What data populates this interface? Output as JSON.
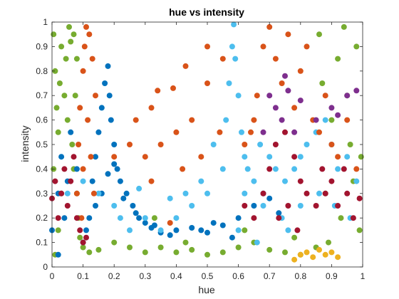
{
  "chart_data": {
    "type": "scatter",
    "title": "hue vs intensity",
    "xlabel": "hue",
    "ylabel": "intensity",
    "xlim": [
      0,
      1
    ],
    "ylim": [
      0,
      1
    ],
    "xticks": [
      "0",
      "0.1",
      "0.2",
      "0.3",
      "0.4",
      "0.5",
      "0.6",
      "0.7",
      "0.8",
      "0.9",
      "1"
    ],
    "yticks": [
      "0",
      "0.1",
      "0.2",
      "0.3",
      "0.4",
      "0.5",
      "0.6",
      "0.7",
      "0.8",
      "0.9",
      "1"
    ],
    "grid": false,
    "legend": "none",
    "series": [
      {
        "color": "#77AC30",
        "points": [
          [
            0.005,
            0.95
          ],
          [
            0.01,
            0.8
          ],
          [
            0.015,
            0.65
          ],
          [
            0.02,
            0.55
          ],
          [
            0.025,
            0.75
          ],
          [
            0.03,
            0.9
          ],
          [
            0.04,
            0.7
          ],
          [
            0.045,
            0.85
          ],
          [
            0.05,
            0.6
          ],
          [
            0.055,
            0.98
          ],
          [
            0.06,
            0.92
          ],
          [
            0.065,
            0.5
          ],
          [
            0.07,
            0.4
          ],
          [
            0.075,
            0.7
          ],
          [
            0.08,
            0.3
          ],
          [
            0.085,
            0.2
          ],
          [
            0.09,
            0.12
          ],
          [
            0.1,
            0.08
          ],
          [
            0.12,
            0.06
          ],
          [
            0.15,
            0.07
          ],
          [
            0.2,
            0.1
          ],
          [
            0.25,
            0.08
          ],
          [
            0.3,
            0.06
          ],
          [
            0.35,
            0.08
          ],
          [
            0.4,
            0.06
          ],
          [
            0.45,
            0.07
          ],
          [
            0.5,
            0.05
          ],
          [
            0.55,
            0.06
          ],
          [
            0.6,
            0.08
          ],
          [
            0.65,
            0.1
          ],
          [
            0.7,
            0.07
          ],
          [
            0.75,
            0.06
          ],
          [
            0.8,
            0.05
          ],
          [
            0.85,
            0.08
          ],
          [
            0.88,
            0.3
          ],
          [
            0.9,
            0.6
          ],
          [
            0.92,
            0.85
          ],
          [
            0.94,
            0.98
          ],
          [
            0.95,
            0.7
          ],
          [
            0.96,
            0.5
          ],
          [
            0.97,
            0.35
          ],
          [
            0.98,
            0.9
          ],
          [
            0.99,
            0.15
          ],
          [
            0.995,
            0.45
          ],
          [
            0.86,
            0.95
          ],
          [
            0.87,
            0.75
          ],
          [
            0.89,
            0.1
          ],
          [
            0.93,
            0.2
          ],
          [
            0.03,
            0.3
          ],
          [
            0.02,
            0.15
          ],
          [
            0.01,
            0.05
          ],
          [
            0.005,
            0.4
          ],
          [
            0.07,
            0.95
          ],
          [
            0.08,
            0.85
          ],
          [
            0.33,
            0.2
          ],
          [
            0.43,
            0.1
          ],
          [
            0.62,
            0.15
          ],
          [
            0.78,
            0.12
          ]
        ]
      },
      {
        "color": "#0072BD",
        "points": [
          [
            0.1,
            0.1
          ],
          [
            0.12,
            0.2
          ],
          [
            0.13,
            0.35
          ],
          [
            0.14,
            0.45
          ],
          [
            0.15,
            0.55
          ],
          [
            0.16,
            0.65
          ],
          [
            0.17,
            0.75
          ],
          [
            0.18,
            0.82
          ],
          [
            0.185,
            0.7
          ],
          [
            0.19,
            0.6
          ],
          [
            0.2,
            0.5
          ],
          [
            0.21,
            0.4
          ],
          [
            0.22,
            0.35
          ],
          [
            0.24,
            0.3
          ],
          [
            0.26,
            0.25
          ],
          [
            0.28,
            0.2
          ],
          [
            0.3,
            0.18
          ],
          [
            0.32,
            0.16
          ],
          [
            0.35,
            0.14
          ],
          [
            0.4,
            0.15
          ],
          [
            0.45,
            0.16
          ],
          [
            0.5,
            0.14
          ],
          [
            0.55,
            0.17
          ],
          [
            0.6,
            0.2
          ],
          [
            0.65,
            0.25
          ],
          [
            0.7,
            0.28
          ],
          [
            0.08,
            0.4
          ],
          [
            0.05,
            0.35
          ],
          [
            0.03,
            0.45
          ],
          [
            0.02,
            0.3
          ],
          [
            0.06,
            0.55
          ],
          [
            0.04,
            0.2
          ],
          [
            0.11,
            0.15
          ],
          [
            0.23,
            0.28
          ],
          [
            0.27,
            0.22
          ],
          [
            0.33,
            0.17
          ],
          [
            0.38,
            0.13
          ],
          [
            0.48,
            0.15
          ],
          [
            0.52,
            0.18
          ],
          [
            0.58,
            0.12
          ],
          [
            0.68,
            0.3
          ],
          [
            0.73,
            0.22
          ],
          [
            0.14,
            0.25
          ],
          [
            0.16,
            0.3
          ],
          [
            0.18,
            0.38
          ],
          [
            0.2,
            0.42
          ],
          [
            0.02,
            0.05
          ],
          [
            0.0,
            0.15
          ]
        ]
      },
      {
        "color": "#4DBEEE",
        "points": [
          [
            0.56,
            0.6
          ],
          [
            0.57,
            0.75
          ],
          [
            0.58,
            0.9
          ],
          [
            0.585,
            0.99
          ],
          [
            0.59,
            0.85
          ],
          [
            0.6,
            0.7
          ],
          [
            0.61,
            0.55
          ],
          [
            0.62,
            0.45
          ],
          [
            0.63,
            0.4
          ],
          [
            0.65,
            0.35
          ],
          [
            0.67,
            0.5
          ],
          [
            0.7,
            0.45
          ],
          [
            0.72,
            0.4
          ],
          [
            0.75,
            0.35
          ],
          [
            0.78,
            0.4
          ],
          [
            0.8,
            0.45
          ],
          [
            0.82,
            0.5
          ],
          [
            0.85,
            0.55
          ],
          [
            0.88,
            0.6
          ],
          [
            0.9,
            0.5
          ],
          [
            0.92,
            0.4
          ],
          [
            0.95,
            0.45
          ],
          [
            0.98,
            0.35
          ],
          [
            0.5,
            0.3
          ],
          [
            0.45,
            0.25
          ],
          [
            0.4,
            0.2
          ],
          [
            0.35,
            0.15
          ],
          [
            0.3,
            0.2
          ],
          [
            0.25,
            0.15
          ],
          [
            0.2,
            0.25
          ],
          [
            0.15,
            0.3
          ],
          [
            0.1,
            0.35
          ],
          [
            0.05,
            0.3
          ],
          [
            0.55,
            0.4
          ],
          [
            0.52,
            0.5
          ],
          [
            0.62,
            0.3
          ],
          [
            0.68,
            0.25
          ],
          [
            0.74,
            0.2
          ],
          [
            0.8,
            0.25
          ],
          [
            0.86,
            0.3
          ],
          [
            0.91,
            0.25
          ],
          [
            0.96,
            0.2
          ],
          [
            0.43,
            0.3
          ],
          [
            0.48,
            0.35
          ],
          [
            0.38,
            0.28
          ],
          [
            0.28,
            0.32
          ],
          [
            0.22,
            0.2
          ],
          [
            0.6,
            0.15
          ],
          [
            0.66,
            0.1
          ],
          [
            0.76,
            0.15
          ]
        ]
      },
      {
        "color": "#D95319",
        "points": [
          [
            0.08,
            0.3
          ],
          [
            0.085,
            0.5
          ],
          [
            0.09,
            0.65
          ],
          [
            0.1,
            0.8
          ],
          [
            0.105,
            0.9
          ],
          [
            0.11,
            0.98
          ],
          [
            0.12,
            0.95
          ],
          [
            0.13,
            0.85
          ],
          [
            0.14,
            0.7
          ],
          [
            0.1,
            0.4
          ],
          [
            0.095,
            0.2
          ],
          [
            0.115,
            0.6
          ],
          [
            0.125,
            0.45
          ],
          [
            0.135,
            0.3
          ],
          [
            0.66,
            0.7
          ],
          [
            0.68,
            0.9
          ],
          [
            0.7,
            0.98
          ],
          [
            0.72,
            0.85
          ],
          [
            0.74,
            0.75
          ],
          [
            0.76,
            0.95
          ],
          [
            0.78,
            0.65
          ],
          [
            0.8,
            0.8
          ],
          [
            0.82,
            0.9
          ],
          [
            0.84,
            0.6
          ],
          [
            0.86,
            0.55
          ],
          [
            0.88,
            0.7
          ],
          [
            0.9,
            0.5
          ],
          [
            0.92,
            0.45
          ],
          [
            0.95,
            0.6
          ],
          [
            0.98,
            0.4
          ],
          [
            0.64,
            0.55
          ],
          [
            0.62,
            0.5
          ],
          [
            0.65,
            0.6
          ],
          [
            0.35,
            0.5
          ],
          [
            0.4,
            0.55
          ],
          [
            0.45,
            0.6
          ],
          [
            0.3,
            0.45
          ],
          [
            0.25,
            0.5
          ],
          [
            0.2,
            0.45
          ],
          [
            0.32,
            0.35
          ],
          [
            0.42,
            0.4
          ],
          [
            0.48,
            0.45
          ],
          [
            0.32,
            0.65
          ],
          [
            0.39,
            0.73
          ],
          [
            0.43,
            0.82
          ],
          [
            0.5,
            0.9
          ],
          [
            0.55,
            0.85
          ],
          [
            0.38,
            0.18
          ],
          [
            0.5,
            0.75
          ],
          [
            0.27,
            0.6
          ],
          [
            0.34,
            0.72
          ],
          [
            0.54,
            0.55
          ]
        ]
      },
      {
        "color": "#A2142F",
        "points": [
          [
            0.02,
            0.2
          ],
          [
            0.03,
            0.3
          ],
          [
            0.04,
            0.4
          ],
          [
            0.05,
            0.25
          ],
          [
            0.06,
            0.35
          ],
          [
            0.07,
            0.45
          ],
          [
            0.08,
            0.2
          ],
          [
            0.09,
            0.15
          ],
          [
            0.1,
            0.1
          ],
          [
            0.11,
            0.12
          ],
          [
            0.0,
            0.28
          ],
          [
            0.01,
            0.35
          ],
          [
            0.65,
            0.2
          ],
          [
            0.68,
            0.3
          ],
          [
            0.7,
            0.4
          ],
          [
            0.72,
            0.5
          ],
          [
            0.75,
            0.55
          ],
          [
            0.78,
            0.45
          ],
          [
            0.8,
            0.35
          ],
          [
            0.82,
            0.3
          ],
          [
            0.85,
            0.25
          ],
          [
            0.88,
            0.3
          ],
          [
            0.9,
            0.35
          ],
          [
            0.92,
            0.25
          ],
          [
            0.95,
            0.3
          ],
          [
            0.97,
            0.2
          ],
          [
            0.99,
            0.28
          ],
          [
            0.73,
            0.2
          ],
          [
            0.76,
            0.25
          ],
          [
            0.79,
            0.15
          ],
          [
            0.62,
            0.25
          ],
          [
            0.94,
            0.4
          ],
          [
            0.87,
            0.4
          ]
        ]
      },
      {
        "color": "#7E2F8E",
        "points": [
          [
            0.7,
            0.7
          ],
          [
            0.72,
            0.65
          ],
          [
            0.74,
            0.6
          ],
          [
            0.76,
            0.72
          ],
          [
            0.78,
            0.55
          ],
          [
            0.8,
            0.68
          ],
          [
            0.85,
            0.6
          ],
          [
            0.9,
            0.65
          ],
          [
            0.92,
            0.62
          ],
          [
            0.95,
            0.7
          ],
          [
            0.98,
            0.72
          ],
          [
            0.75,
            0.78
          ],
          [
            0.68,
            0.55
          ]
        ]
      },
      {
        "color": "#EDB120",
        "points": [
          [
            0.8,
            0.05
          ],
          [
            0.82,
            0.06
          ],
          [
            0.84,
            0.04
          ],
          [
            0.86,
            0.07
          ],
          [
            0.88,
            0.05
          ],
          [
            0.9,
            0.06
          ],
          [
            0.92,
            0.04
          ],
          [
            0.78,
            0.03
          ]
        ]
      }
    ]
  }
}
